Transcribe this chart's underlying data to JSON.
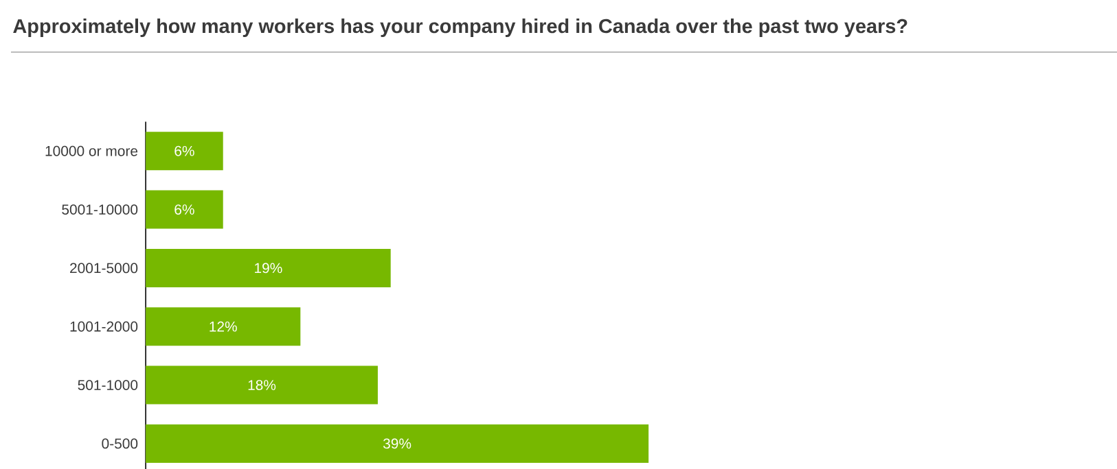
{
  "chart_data": {
    "type": "bar",
    "orientation": "horizontal",
    "title": "Approximately how many workers has your company hired in Canada over the past two years?",
    "categories": [
      "10000 or more",
      "5001-10000",
      "2001-5000",
      "1001-2000",
      "501-1000",
      "0-500"
    ],
    "values": [
      6,
      6,
      19,
      12,
      18,
      39
    ],
    "value_labels": [
      "6%",
      "6%",
      "19%",
      "12%",
      "18%",
      "39%"
    ],
    "color": "#77b800"
  }
}
